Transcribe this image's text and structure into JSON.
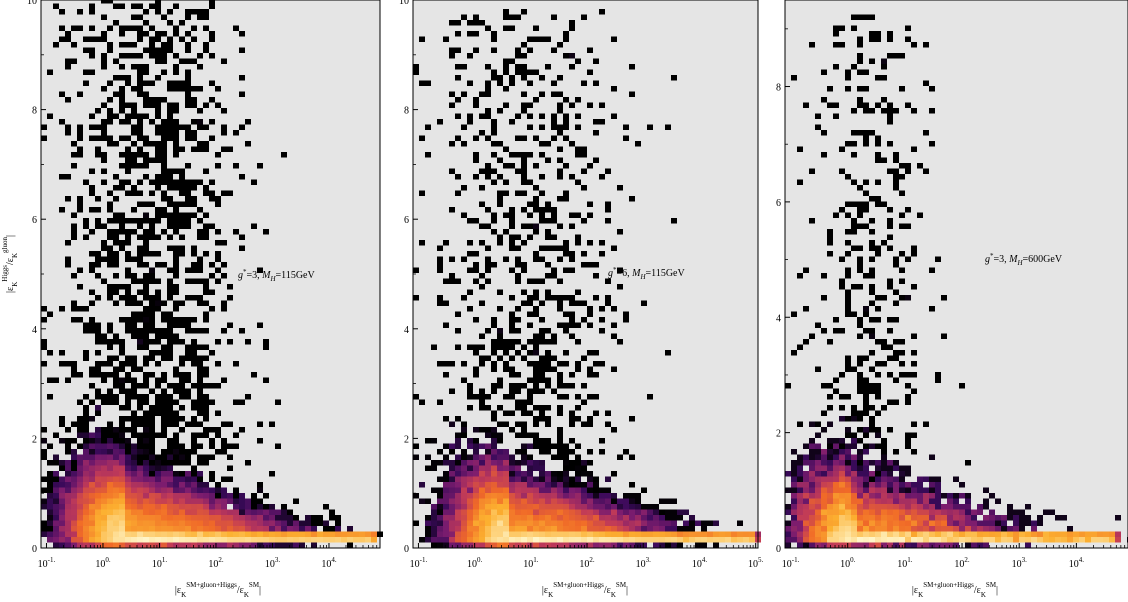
{
  "chart_data": [
    {
      "type": "heatmap",
      "title": "",
      "annotation": {
        "pre": "g*=3, ",
        "post": "=115GeV",
        "mh": "M",
        "mhsub": "H"
      },
      "xlabel": "|ε_K^{SM+gluon+Higgs}/ε_K^{SM}|",
      "ylabel": "|ε_K^{Higgs}/ε_K^{gluon}|",
      "x_scale": "log",
      "x_range": [
        0.08,
        80000
      ],
      "x_ticks": [
        "10^{-1.}",
        "10^{0.}",
        "10^{1.}",
        "10^{2.}",
        "10^{3.}",
        "10^{4.}"
      ],
      "y_range": [
        0,
        10
      ],
      "y_ticks": [
        "0",
        "2",
        "4",
        "6",
        "8",
        "10"
      ],
      "background": "#e5e5e5",
      "colormap": [
        "#000000",
        "#3a0a5a",
        "#7b1c6e",
        "#c03a58",
        "#f06a28",
        "#fcb030",
        "#fff5c8"
      ],
      "density": {
        "peak_log10_x": 0.4,
        "peak_y": 0.3,
        "tail_log10_x_max": 4.8,
        "scatter_log10_x_range": [
          -1.0,
          2.6
        ],
        "scatter_y_max": 10,
        "total_points": 4000
      }
    },
    {
      "type": "heatmap",
      "title": "",
      "annotation": {
        "pre": "g*=6, ",
        "post": "=115GeV",
        "mh": "M",
        "mhsub": "H"
      },
      "xlabel": "|ε_K^{SM+gluon+Higgs}/ε_K^{SM}|",
      "ylabel": "",
      "x_scale": "log",
      "x_range": [
        0.08,
        110000
      ],
      "x_ticks": [
        "10^{-1.}",
        "10^{0.}",
        "10^{1.}",
        "10^{2.}",
        "10^{3.}",
        "10^{4.}",
        "10^{5.}"
      ],
      "y_range": [
        0,
        10
      ],
      "y_ticks": [
        "0",
        "2",
        "4",
        "6",
        "8",
        "10"
      ],
      "background": "#e5e5e5",
      "colormap": [
        "#000000",
        "#3a0a5a",
        "#7b1c6e",
        "#c03a58",
        "#f06a28",
        "#fcb030",
        "#fff5c8"
      ],
      "density": {
        "peak_log10_x": 0.6,
        "peak_y": 0.3,
        "tail_log10_x_max": 5.0,
        "scatter_log10_x_range": [
          -0.9,
          2.8
        ],
        "scatter_y_max": 9.8,
        "total_points": 2500
      }
    },
    {
      "type": "heatmap",
      "title": "",
      "annotation": {
        "pre": "g*=3, ",
        "post": "=600GeV",
        "mh": "M",
        "mhsub": "H"
      },
      "xlabel": "|ε_K^{SM+gluon+Higgs}/ε_K^{SM}|",
      "ylabel": "",
      "x_scale": "log",
      "x_range": [
        0.08,
        80000
      ],
      "x_ticks": [
        "10^{-1.}",
        "10^{0.}",
        "10^{1.}",
        "10^{2.}",
        "10^{3.}",
        "10^{4.}"
      ],
      "y_range": [
        0,
        9.5
      ],
      "y_ticks": [
        "0",
        "2",
        "4",
        "6",
        "8"
      ],
      "background": "#e5e5e5",
      "colormap": [
        "#000000",
        "#3a0a5a",
        "#7b1c6e",
        "#c03a58",
        "#f06a28",
        "#fcb030",
        "#fff5c8"
      ],
      "density": {
        "peak_log10_x": 0.1,
        "peak_y": 0.25,
        "tail_log10_x_max": 4.7,
        "scatter_log10_x_range": [
          -0.9,
          1.6
        ],
        "scatter_y_max": 9.3,
        "total_points": 1200
      }
    }
  ]
}
